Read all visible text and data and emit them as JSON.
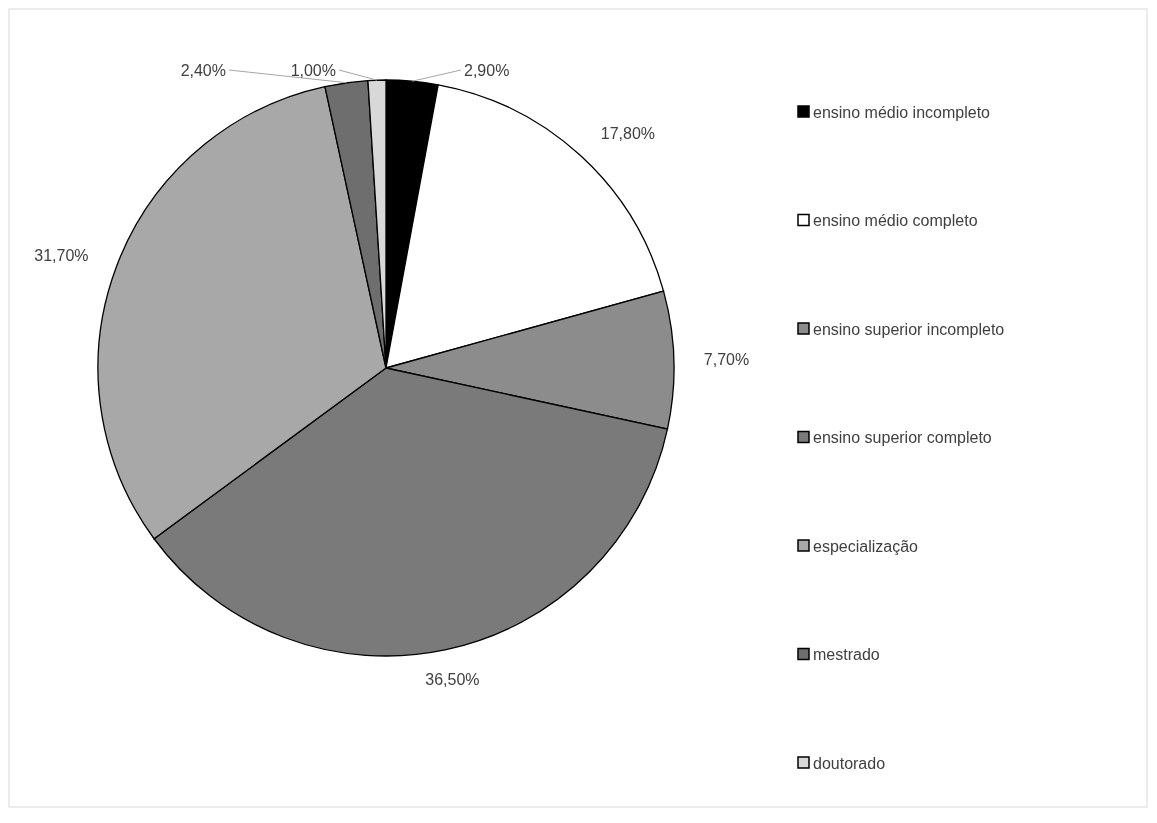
{
  "chart_data": {
    "type": "pie",
    "categories": [
      "ensino médio incompleto",
      "ensino médio completo",
      "ensino superior incompleto",
      "ensino superior completo",
      "especialização",
      "mestrado",
      "doutorado"
    ],
    "values": [
      2.9,
      17.8,
      7.7,
      36.5,
      31.7,
      2.4,
      1.0
    ],
    "value_labels": [
      "2,90%",
      "17,80%",
      "7,70%",
      "36,50%",
      "31,70%",
      "2,40%",
      "1,00%"
    ],
    "colors": [
      "#000000",
      "#ffffff",
      "#8c8c8c",
      "#7a7a7a",
      "#a8a8a8",
      "#6e6e6e",
      "#d8d8d8"
    ],
    "legend": "right"
  }
}
